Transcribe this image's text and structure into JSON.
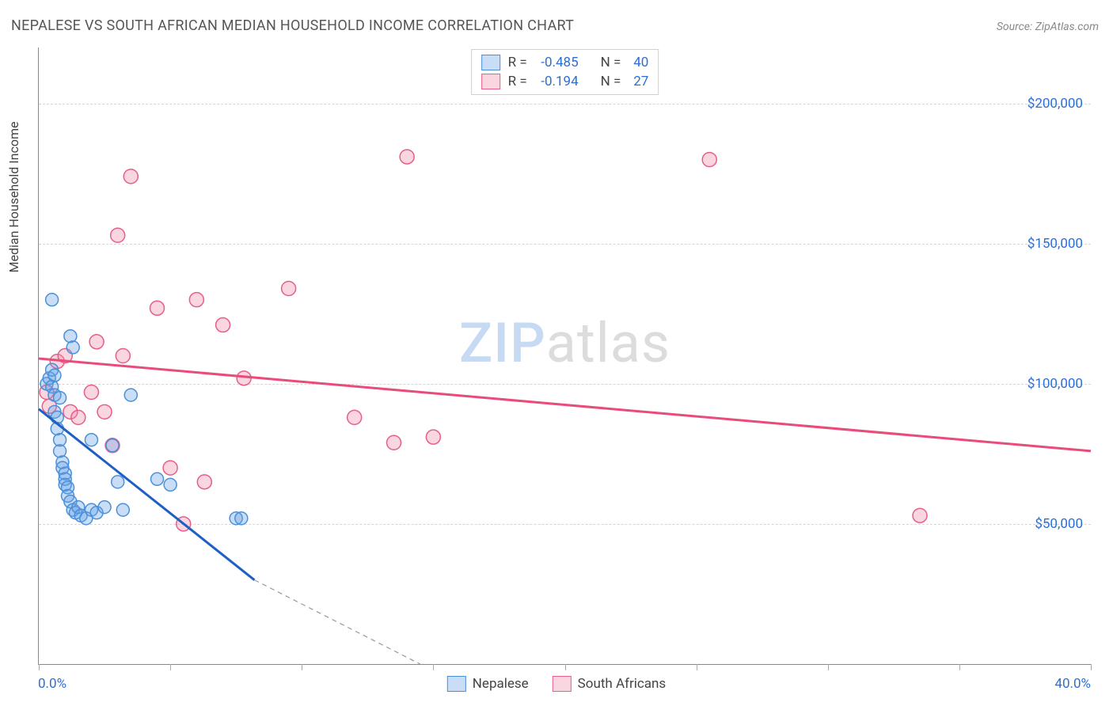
{
  "title": "NEPALESE VS SOUTH AFRICAN MEDIAN HOUSEHOLD INCOME CORRELATION CHART",
  "source_label": "Source:",
  "source_value": "ZipAtlas.com",
  "ylabel": "Median Household Income",
  "watermark_a": "ZIP",
  "watermark_b": "atlas",
  "chart": {
    "xlim": [
      0,
      40
    ],
    "ylim": [
      0,
      220000
    ],
    "x_unit": "%",
    "yticks": [
      50000,
      100000,
      150000,
      200000
    ],
    "ytick_labels": [
      "$50,000",
      "$100,000",
      "$150,000",
      "$200,000"
    ],
    "xtick_positions": [
      0,
      5,
      10,
      15,
      20,
      25,
      30,
      35,
      40
    ],
    "xaxis_min_label": "0.0%",
    "xaxis_max_label": "40.0%",
    "grid_color": "#d5d5d5",
    "axis_color": "#888888",
    "background_color": "#ffffff"
  },
  "series": {
    "nepalese": {
      "label": "Nepalese",
      "r_label": "R =",
      "r_value": "-0.485",
      "n_label": "N =",
      "n_value": "40",
      "fill": "rgba(100,160,230,0.35)",
      "stroke": "#4a90d9",
      "line_color": "#1f5fc4",
      "marker_radius": 8,
      "trend": {
        "x1": 0,
        "y1": 91000,
        "x2": 8.2,
        "y2": 30000
      },
      "trend_ext": {
        "x1": 8.2,
        "y1": 30000,
        "x2": 14.5,
        "y2": 0
      },
      "points": [
        [
          0.3,
          100000
        ],
        [
          0.4,
          102000
        ],
        [
          0.5,
          99000
        ],
        [
          0.5,
          105000
        ],
        [
          0.6,
          96000
        ],
        [
          0.6,
          90000
        ],
        [
          0.7,
          88000
        ],
        [
          0.7,
          84000
        ],
        [
          0.8,
          80000
        ],
        [
          0.8,
          76000
        ],
        [
          0.9,
          72000
        ],
        [
          0.9,
          70000
        ],
        [
          1.0,
          68000
        ],
        [
          1.0,
          66000
        ],
        [
          1.0,
          64000
        ],
        [
          1.1,
          63000
        ],
        [
          1.1,
          60000
        ],
        [
          1.2,
          58000
        ],
        [
          1.3,
          55000
        ],
        [
          1.4,
          54000
        ],
        [
          1.5,
          56000
        ],
        [
          1.6,
          53000
        ],
        [
          1.8,
          52000
        ],
        [
          2.0,
          55000
        ],
        [
          2.2,
          54000
        ],
        [
          2.5,
          56000
        ],
        [
          2.8,
          78000
        ],
        [
          3.0,
          65000
        ],
        [
          3.2,
          55000
        ],
        [
          3.5,
          96000
        ],
        [
          1.2,
          117000
        ],
        [
          1.3,
          113000
        ],
        [
          0.5,
          130000
        ],
        [
          0.6,
          103000
        ],
        [
          0.8,
          95000
        ],
        [
          4.5,
          66000
        ],
        [
          5.0,
          64000
        ],
        [
          7.5,
          52000
        ],
        [
          7.7,
          52000
        ],
        [
          2.0,
          80000
        ]
      ]
    },
    "south_africans": {
      "label": "South Africans",
      "r_label": "R =",
      "r_value": "-0.194",
      "n_label": "N =",
      "n_value": "27",
      "fill": "rgba(240,140,165,0.35)",
      "stroke": "#e65f86",
      "line_color": "#e84c7a",
      "marker_radius": 9,
      "trend": {
        "x1": 0,
        "y1": 109000,
        "x2": 40,
        "y2": 76000
      },
      "points": [
        [
          0.3,
          97000
        ],
        [
          0.7,
          108000
        ],
        [
          1.0,
          110000
        ],
        [
          1.2,
          90000
        ],
        [
          1.5,
          88000
        ],
        [
          2.0,
          97000
        ],
        [
          2.2,
          115000
        ],
        [
          2.5,
          90000
        ],
        [
          2.8,
          78000
        ],
        [
          3.0,
          153000
        ],
        [
          3.2,
          110000
        ],
        [
          3.5,
          174000
        ],
        [
          4.5,
          127000
        ],
        [
          5.0,
          70000
        ],
        [
          6.0,
          130000
        ],
        [
          6.3,
          65000
        ],
        [
          7.0,
          121000
        ],
        [
          7.8,
          102000
        ],
        [
          9.5,
          134000
        ],
        [
          12.0,
          88000
        ],
        [
          13.5,
          79000
        ],
        [
          14.0,
          181000
        ],
        [
          15.0,
          81000
        ],
        [
          25.5,
          180000
        ],
        [
          33.5,
          53000
        ],
        [
          5.5,
          50000
        ],
        [
          0.4,
          92000
        ]
      ]
    }
  }
}
